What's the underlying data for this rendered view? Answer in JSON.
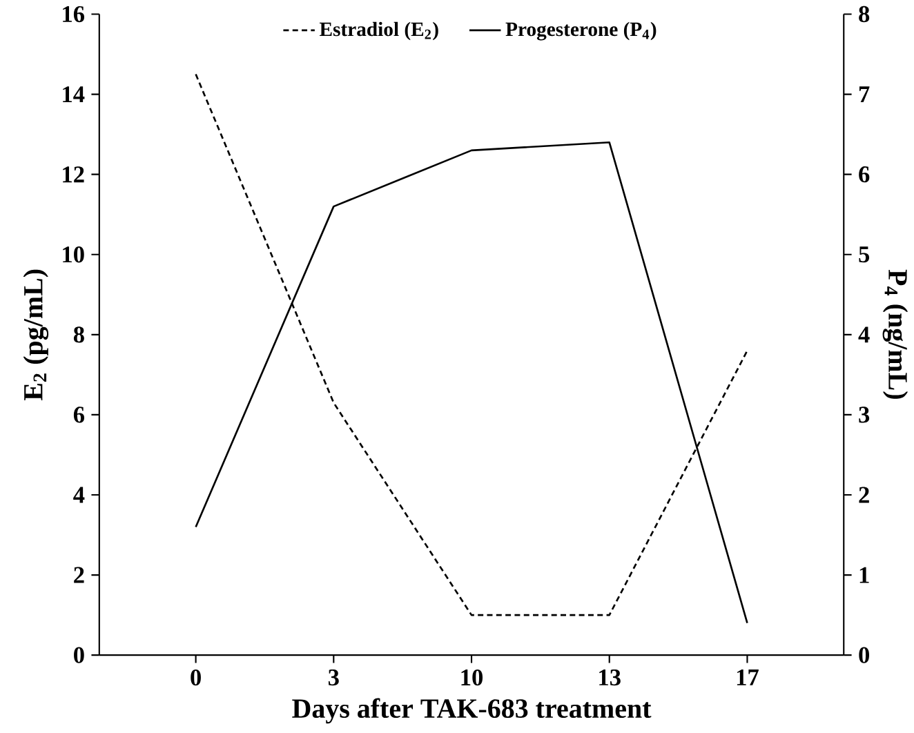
{
  "chart_data": {
    "type": "line",
    "categories": [
      "0",
      "3",
      "10",
      "13",
      "17"
    ],
    "xlabel": "Days after TAK-683 treatment",
    "ylabel": "E$_{2}$ (pg/mL)",
    "y2label": "P$_{4}$ (ng/mL)",
    "ylim": [
      0,
      16
    ],
    "yticks": [
      0,
      2,
      4,
      6,
      8,
      10,
      12,
      14,
      16
    ],
    "y2lim": [
      0,
      8
    ],
    "y2ticks": [
      0,
      1,
      2,
      3,
      4,
      5,
      6,
      7,
      8
    ],
    "legend": "top",
    "series": [
      {
        "name": "Estradiol (E$_{2}$)",
        "color": "#000000",
        "line_style": "dashed",
        "values": [
          14.5,
          6.3,
          1.0,
          1.0,
          7.6
        ]
      },
      {
        "name": "Progesterone (P$_{4}$)",
        "color": "#000000",
        "line_style": "solid",
        "axis": "y2",
        "values": [
          1.6,
          5.6,
          6.3,
          6.4,
          0.4
        ]
      }
    ]
  }
}
